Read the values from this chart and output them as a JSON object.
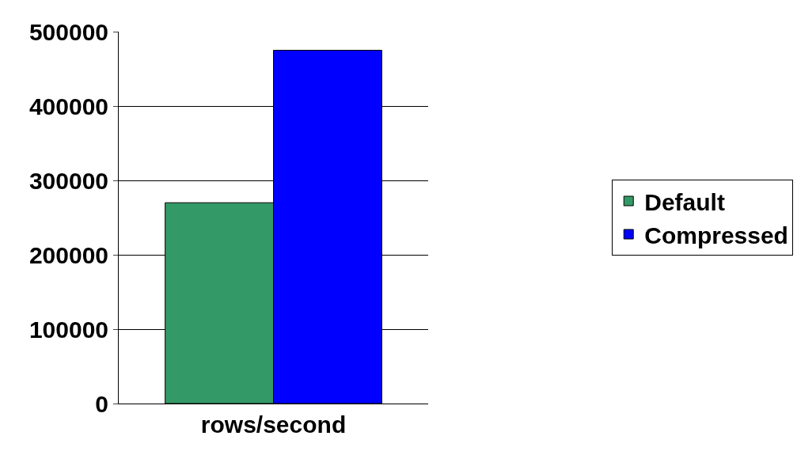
{
  "chart_data": {
    "type": "bar",
    "categories": [
      "rows/second"
    ],
    "series": [
      {
        "name": "Default",
        "color": "#339966",
        "values": [
          270000
        ]
      },
      {
        "name": "Compressed",
        "color": "#0000ff",
        "values": [
          475000
        ]
      }
    ],
    "ylim": [
      0,
      500000
    ],
    "yticks": [
      0,
      100000,
      200000,
      300000,
      400000,
      500000
    ],
    "grid": "y",
    "legend": "right"
  }
}
